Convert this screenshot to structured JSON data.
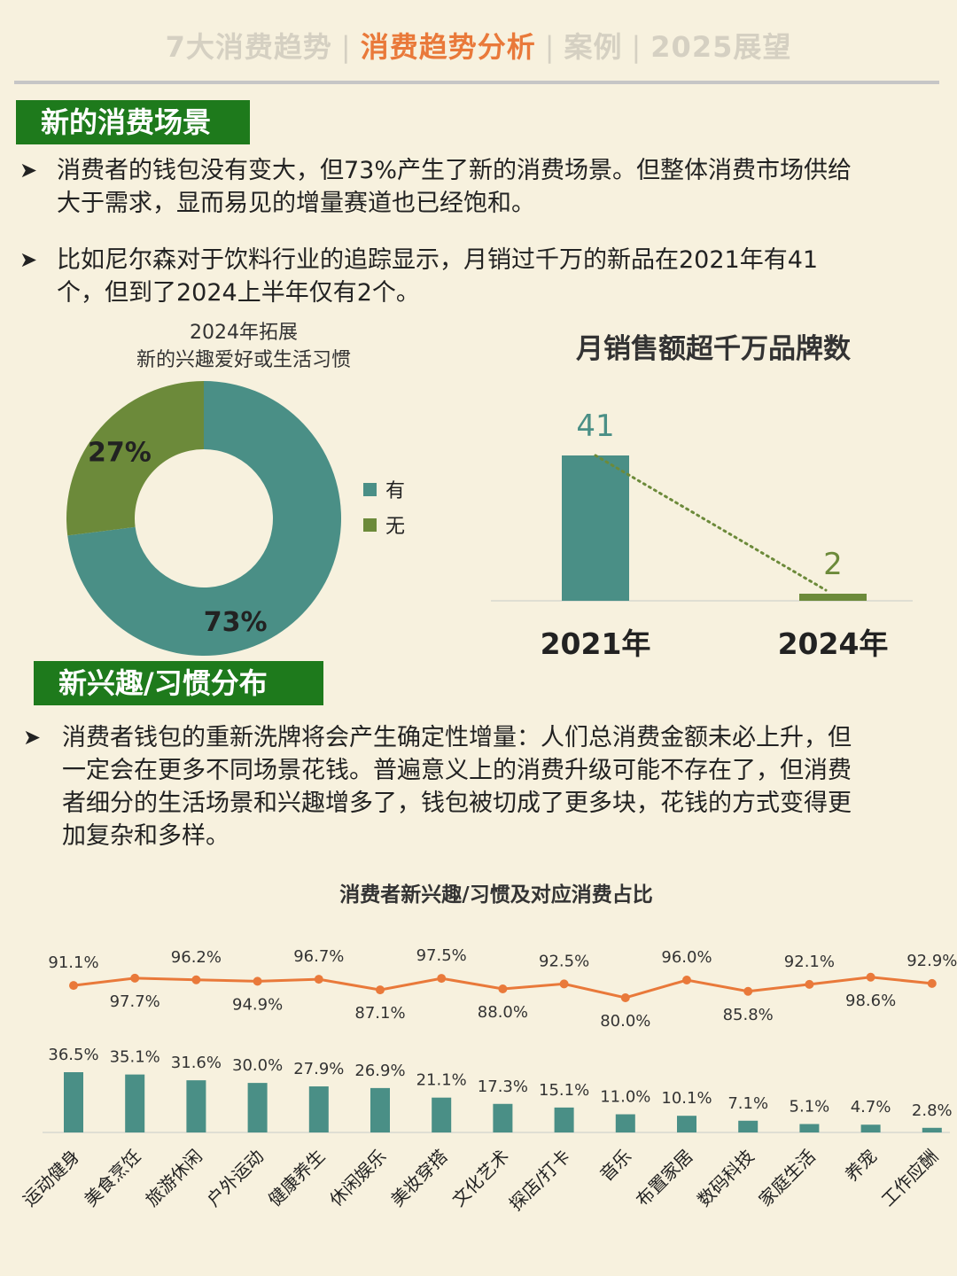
{
  "nav": {
    "items": [
      "7大消费趋势",
      "消费趋势分析",
      "案例",
      "2025展望"
    ],
    "active_index": 1,
    "separator": "|"
  },
  "colors": {
    "teal": "#4a8f86",
    "olive": "#6c8a3a",
    "orange": "#e9793a",
    "section_green": "#1e7a1c",
    "background": "#f7f1de"
  },
  "section1": {
    "title": "新的消费场景",
    "bullets": [
      [
        "消费者的钱包没有变大，但73%产生了新的消费场景。但整体消费市场供给",
        "大于需求，显而易见的增量赛道也已经饱和。"
      ],
      [
        "比如尼尔森对于饮料行业的追踪显示，月销过千万的新品在2021年有41",
        "个，但到了2024上半年仅有2个。"
      ]
    ]
  },
  "section2": {
    "title": "新兴趣/习惯分布",
    "bullets": [
      [
        "消费者钱包的重新洗牌将会产生确定性增量：人们总消费金额未必上升，但",
        "一定会在更多不同场景花钱。普遍意义上的消费升级可能不存在了，但消费",
        "者细分的生活场景和兴趣增多了，钱包被切成了更多块，花钱的方式变得更",
        "加复杂和多样。"
      ]
    ]
  },
  "bullet_marker": "➤",
  "chart_data": [
    {
      "type": "pie",
      "title": "2024年拓展",
      "subtitle": "新的兴趣爱好或生活习惯",
      "labels": [
        "有",
        "无"
      ],
      "values": [
        73,
        27
      ],
      "value_labels": [
        "73%",
        "27%"
      ],
      "colors": [
        "#4a8f86",
        "#6c8a3a"
      ],
      "donut": true,
      "legend": "right"
    },
    {
      "type": "bar",
      "title": "月销售额超千万品牌数",
      "categories": [
        "2021年",
        "2024年"
      ],
      "values": [
        41,
        2
      ],
      "value_labels": [
        "41",
        "2"
      ],
      "colors": [
        "#4a8f86",
        "#6c8a3a"
      ],
      "trendline": "dotted",
      "ylim": [
        0,
        41
      ]
    },
    {
      "type": "bar",
      "title": "消费者新兴趣/习惯及对应消费占比",
      "categories": [
        "运动健身",
        "美食烹饪",
        "旅游休闲",
        "户外运动",
        "健康养生",
        "休闲娱乐",
        "美妆穿搭",
        "文化艺术",
        "探店/打卡",
        "音乐",
        "布置家居",
        "数码科技",
        "家庭生活",
        "养宠",
        "工作应酬"
      ],
      "series": [
        {
          "type": "bar",
          "values": [
            36.5,
            35.1,
            31.6,
            30.0,
            27.9,
            26.9,
            21.1,
            17.3,
            15.1,
            11.0,
            10.1,
            7.1,
            5.1,
            4.7,
            2.8
          ],
          "value_labels": [
            "36.5%",
            "35.1%",
            "31.6%",
            "30.0%",
            "27.9%",
            "26.9%",
            "21.1%",
            "17.3%",
            "15.1%",
            "11.0%",
            "10.1%",
            "7.1%",
            "5.1%",
            "4.7%",
            "2.8%"
          ],
          "color": "#4a8f86"
        },
        {
          "type": "line",
          "values": [
            91.1,
            97.7,
            96.2,
            94.9,
            96.7,
            87.1,
            97.5,
            88.0,
            92.5,
            80.0,
            96.0,
            85.8,
            92.1,
            98.6,
            92.9
          ],
          "value_labels": [
            "91.1%",
            "97.7%",
            "96.2%",
            "94.9%",
            "96.7%",
            "87.1%",
            "97.5%",
            "88.0%",
            "92.5%",
            "80.0%",
            "96.0%",
            "85.8%",
            "92.1%",
            "98.6%",
            "92.9%"
          ],
          "color": "#e9793a"
        }
      ]
    }
  ]
}
